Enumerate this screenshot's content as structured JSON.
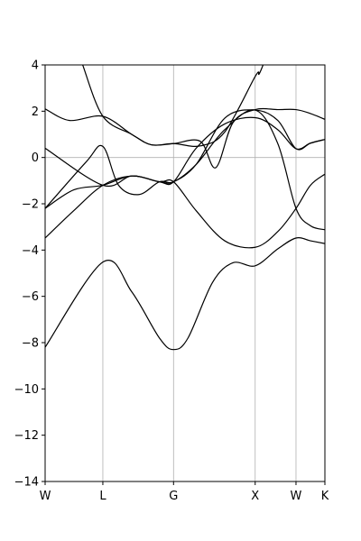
{
  "chart_data": {
    "type": "line",
    "title": "",
    "xlabel": "",
    "ylabel": "",
    "ylim": [
      -14,
      4
    ],
    "x_ticks": [
      {
        "label": "W",
        "k": 0.0
      },
      {
        "label": "L",
        "k": 0.707
      },
      {
        "label": "G",
        "k": 1.573
      },
      {
        "label": "X",
        "k": 2.573
      },
      {
        "label": "W",
        "k": 3.073
      },
      {
        "label": "K",
        "k": 3.427
      }
    ],
    "y_ticks": [
      {
        "label": "4",
        "v": 4
      },
      {
        "label": "2",
        "v": 2
      },
      {
        "label": "0",
        "v": 0
      },
      {
        "label": "−2",
        "v": -2
      },
      {
        "label": "−4",
        "v": -4
      },
      {
        "label": "−6",
        "v": -6
      },
      {
        "label": "−8",
        "v": -8
      },
      {
        "label": "−10",
        "v": -10
      },
      {
        "label": "−12",
        "v": -12
      },
      {
        "label": "−14",
        "v": -14
      }
    ],
    "grid": {
      "vertical_at_ticks": true,
      "horizontal_at": [
        0
      ]
    },
    "series": [
      {
        "points": [
          [
            0.0,
            -8.2
          ],
          [
            0.707,
            -4.52
          ],
          [
            1.06,
            -5.8
          ],
          [
            1.4,
            -7.8
          ],
          [
            1.573,
            -8.3
          ],
          [
            1.75,
            -7.8
          ],
          [
            2.05,
            -5.4
          ],
          [
            2.3,
            -4.55
          ],
          [
            2.573,
            -4.68
          ],
          [
            2.85,
            -3.95
          ],
          [
            3.073,
            -3.48
          ],
          [
            3.25,
            -3.6
          ],
          [
            3.427,
            -3.72
          ]
        ]
      },
      {
        "points": [
          [
            0.0,
            -3.48
          ],
          [
            0.35,
            -2.3
          ],
          [
            0.707,
            -1.2
          ],
          [
            1.06,
            -0.8
          ],
          [
            1.4,
            -1.05
          ],
          [
            1.573,
            -1.05
          ],
          [
            1.85,
            -2.3
          ],
          [
            2.2,
            -3.6
          ],
          [
            2.573,
            -3.88
          ],
          [
            2.85,
            -3.2
          ],
          [
            3.073,
            -2.2
          ],
          [
            3.25,
            -1.2
          ],
          [
            3.427,
            -0.72
          ]
        ]
      },
      {
        "points": [
          [
            0.0,
            -2.2
          ],
          [
            0.35,
            -1.4
          ],
          [
            0.707,
            -1.2
          ],
          [
            1.06,
            -0.8
          ],
          [
            1.4,
            -1.05
          ],
          [
            1.573,
            -1.05
          ],
          [
            1.85,
            -0.3
          ],
          [
            2.2,
            1.2
          ],
          [
            2.573,
            2.05
          ],
          [
            2.85,
            0.6
          ],
          [
            3.073,
            -2.2
          ],
          [
            3.25,
            -2.95
          ],
          [
            3.427,
            -3.12
          ]
        ]
      },
      {
        "points": [
          [
            0.0,
            -2.2
          ],
          [
            0.5,
            -0.2
          ],
          [
            0.707,
            0.48
          ],
          [
            0.9,
            -1.2
          ],
          [
            1.15,
            -1.6
          ],
          [
            1.4,
            -1.05
          ],
          [
            1.573,
            -1.05
          ],
          [
            1.85,
            -0.3
          ],
          [
            2.2,
            1.7
          ],
          [
            2.573,
            2.05
          ],
          [
            2.85,
            1.6
          ],
          [
            3.073,
            0.38
          ],
          [
            3.25,
            0.62
          ],
          [
            3.427,
            0.78
          ]
        ]
      },
      {
        "points": [
          [
            0.0,
            0.4
          ],
          [
            0.707,
            -1.2
          ],
          [
            1.06,
            -0.8
          ],
          [
            1.4,
            -1.05
          ],
          [
            1.573,
            -1.05
          ],
          [
            1.85,
            0.4
          ],
          [
            2.2,
            1.45
          ],
          [
            2.573,
            1.72
          ],
          [
            2.85,
            1.2
          ],
          [
            3.073,
            0.38
          ],
          [
            3.25,
            0.62
          ],
          [
            3.427,
            0.78
          ]
        ]
      },
      {
        "points": [
          [
            0.0,
            2.1
          ],
          [
            0.3,
            1.6
          ],
          [
            0.707,
            1.78
          ],
          [
            1.06,
            1.0
          ],
          [
            1.3,
            0.55
          ],
          [
            1.573,
            0.6
          ],
          [
            1.9,
            0.7
          ],
          [
            2.09,
            -0.44
          ],
          [
            2.3,
            1.5
          ],
          [
            2.573,
            2.07
          ],
          [
            2.85,
            2.07
          ],
          [
            3.073,
            2.07
          ],
          [
            3.25,
            1.9
          ],
          [
            3.427,
            1.65
          ]
        ]
      },
      {
        "points": [
          [
            0.46,
            4.0
          ],
          [
            0.707,
            1.78
          ],
          [
            1.06,
            1.0
          ],
          [
            1.3,
            0.55
          ],
          [
            1.573,
            0.6
          ],
          [
            1.9,
            0.5
          ],
          [
            2.2,
            1.1
          ],
          [
            2.573,
            3.5
          ],
          [
            2.62,
            3.6
          ],
          [
            2.67,
            4.0
          ]
        ]
      }
    ]
  }
}
